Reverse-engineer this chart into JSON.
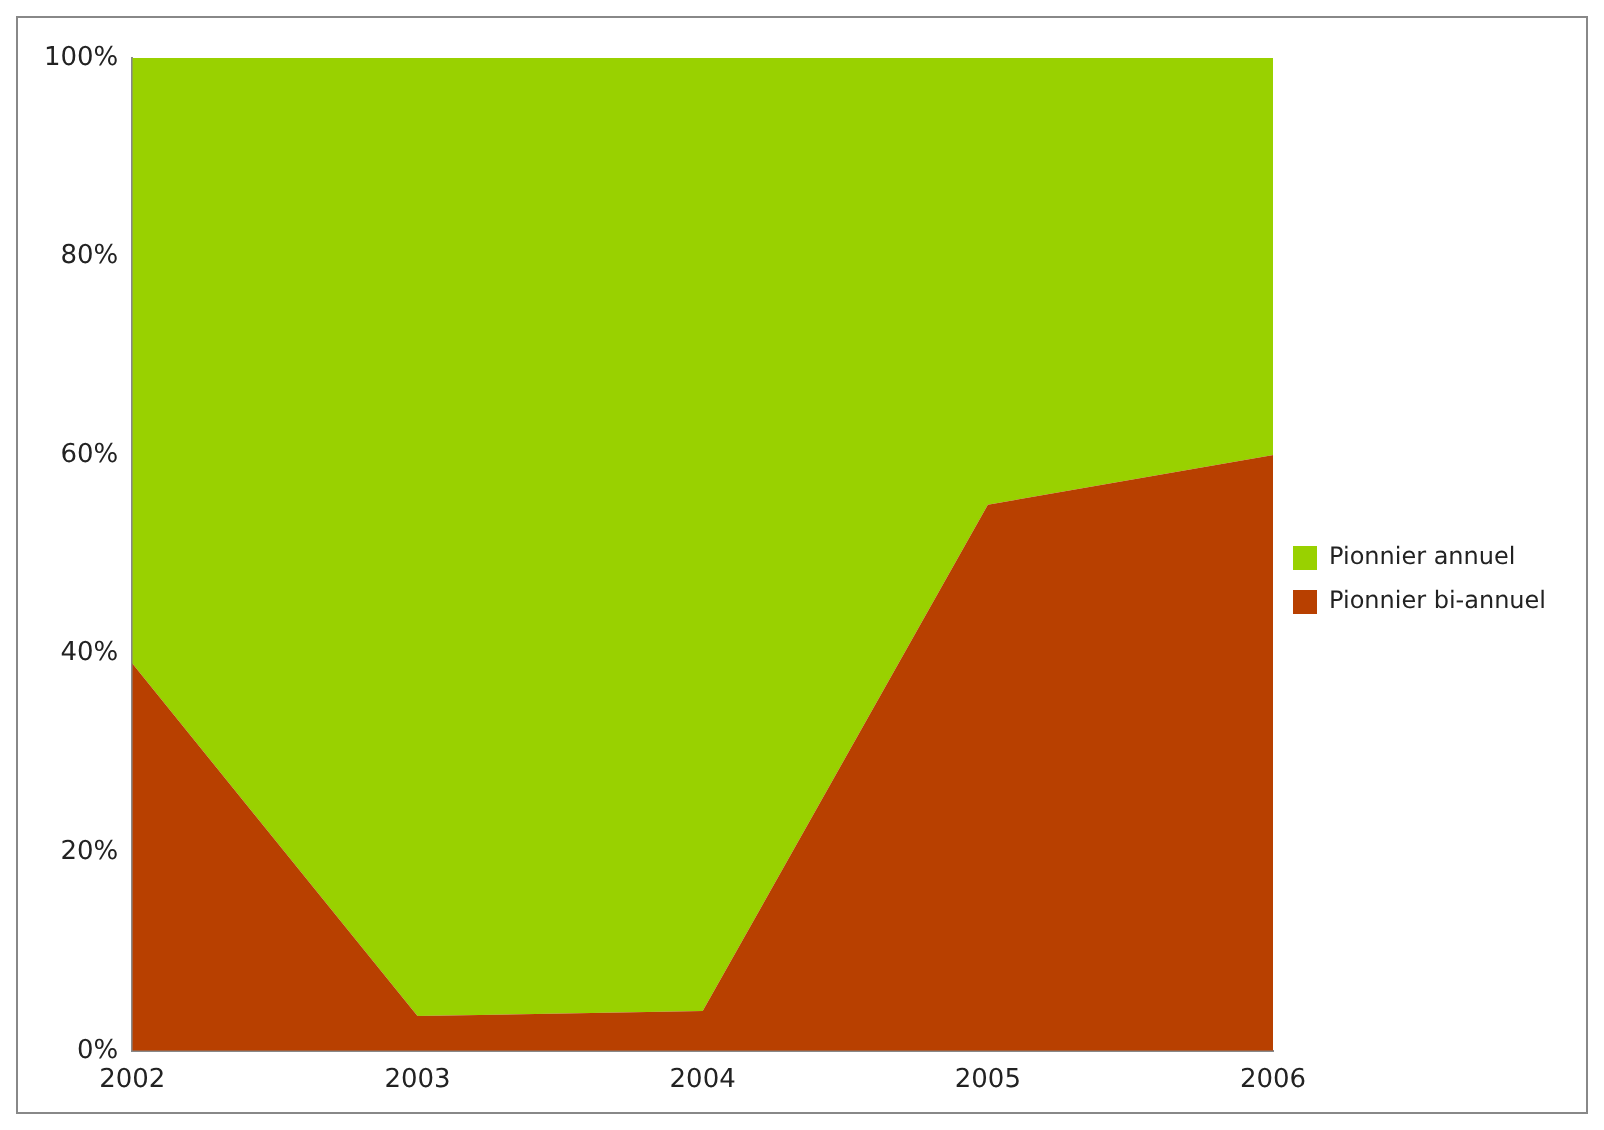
{
  "chart_data": {
    "type": "area",
    "stacked": true,
    "categories": [
      "2002",
      "2003",
      "2004",
      "2005",
      "2006"
    ],
    "series": [
      {
        "name": "Pionnier bi-annuel",
        "color": "#b84000",
        "values": [
          39,
          3.5,
          4,
          55,
          60
        ]
      },
      {
        "name": "Pionnier annuel",
        "color": "#99d100",
        "values": [
          61,
          96.5,
          96,
          45,
          40
        ]
      }
    ],
    "ylim": [
      0,
      100
    ],
    "yticks": [
      {
        "value": 0,
        "label": "0%"
      },
      {
        "value": 20,
        "label": "20%"
      },
      {
        "value": 40,
        "label": "40%"
      },
      {
        "value": 60,
        "label": "60%"
      },
      {
        "value": 80,
        "label": "80%"
      },
      {
        "value": 100,
        "label": "100%"
      }
    ],
    "grid": false,
    "legend": "right"
  }
}
